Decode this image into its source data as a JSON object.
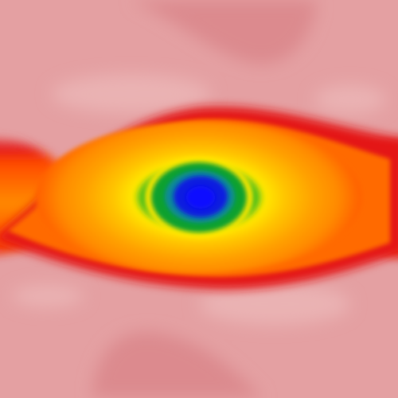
{
  "image": {
    "kind": "false-color field visualization",
    "background_color": "#e4a0a2",
    "palette": {
      "background": "#e4a0a2",
      "background_dark": "#dc8a8e",
      "background_light": "#eab2b3",
      "outer_red": "#e41616",
      "orange": "#ff6a00",
      "amber": "#ff9b00",
      "yellow": "#ffe800",
      "green": "#08a12e",
      "teal": "#0b9a8a",
      "blue": "#0a1fe0",
      "deep_blue": "#1010ff"
    }
  }
}
